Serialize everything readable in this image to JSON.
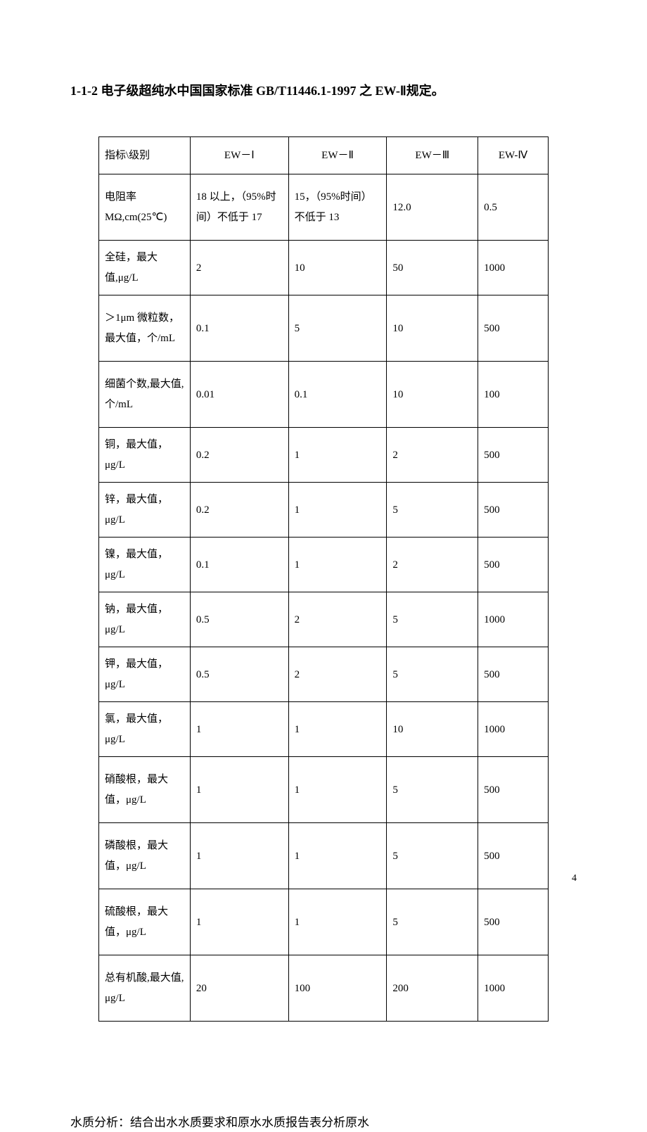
{
  "title": "1-1-2 电子级超纯水中国国家标准 GB/T11446.1-1997 之 EW-Ⅱ规定。",
  "table": {
    "header": {
      "label": "指标\\级别",
      "col1": "EW－Ⅰ",
      "col2": "EW－Ⅱ",
      "col3": "EW－Ⅲ",
      "col4": "EW-Ⅳ"
    },
    "rows": [
      {
        "label": "电阻率 MΩ,cm(25℃)",
        "v1": "18 以上，（95%时间）不低于 17",
        "v2": "15，（95%时间）不低于 13",
        "v3": "12.0",
        "v4": "0.5"
      },
      {
        "label": "全硅，最大值,μg/L",
        "v1": "2",
        "v2": "10",
        "v3": "50",
        "v4": "1000"
      },
      {
        "label": "＞1μm 微粒数，最大值，个/mL",
        "v1": "0.1",
        "v2": "5",
        "v3": "10",
        "v4": "500"
      },
      {
        "label": "细菌个数,最大值, 个/mL",
        "v1": "0.01",
        "v2": "0.1",
        "v3": "10",
        "v4": "100"
      },
      {
        "label": "铜，最大值，μg/L",
        "v1": "0.2",
        "v2": "1",
        "v3": "2",
        "v4": "500"
      },
      {
        "label": "锌，最大值，μg/L",
        "v1": "0.2",
        "v2": "1",
        "v3": "5",
        "v4": "500"
      },
      {
        "label": "镍，最大值，μg/L",
        "v1": "0.1",
        "v2": "1",
        "v3": "2",
        "v4": "500"
      },
      {
        "label": "钠，最大值，μg/L",
        "v1": "0.5",
        "v2": "2",
        "v3": "5",
        "v4": "1000"
      },
      {
        "label": "钾，最大值，μg/L",
        "v1": "0.5",
        "v2": "2",
        "v3": "5",
        "v4": "500"
      },
      {
        "label": "氯，最大值，μg/L",
        "v1": "1",
        "v2": "1",
        "v3": "10",
        "v4": "1000"
      },
      {
        "label": "硝酸根，最大值，μg/L",
        "v1": "1",
        "v2": "1",
        "v3": "5",
        "v4": "500"
      },
      {
        "label": "磷酸根，最大值，μg/L",
        "v1": "1",
        "v2": "1",
        "v3": "5",
        "v4": "500"
      },
      {
        "label": "硫酸根，最大值，μg/L",
        "v1": "1",
        "v2": "1",
        "v3": "5",
        "v4": "500"
      },
      {
        "label": "总有机酸,最大值, μg/L",
        "v1": "20",
        "v2": "100",
        "v3": "200",
        "v4": "1000"
      }
    ]
  },
  "footer_text": "水质分析：结合出水水质要求和原水水质报告表分析原水",
  "page_number": "4"
}
